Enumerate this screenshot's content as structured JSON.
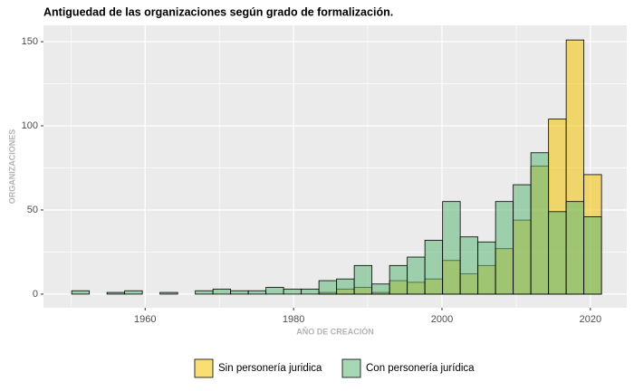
{
  "chart_data": {
    "type": "histogram",
    "title": "Antiguedad de las organizaciones según grado de formalización.",
    "x_label": "AÑO DE CREACIÓN",
    "y_label": "ORGANIZACIONES",
    "bins": [
      1950.1,
      1952.48,
      1954.86,
      1957.24,
      1959.62,
      1962.0,
      1964.38,
      1966.76,
      1969.14,
      1971.52,
      1973.9,
      1976.28,
      1978.66,
      1981.04,
      1983.42,
      1985.8,
      1988.18,
      1990.56,
      1992.94,
      1995.32,
      1997.7,
      2000.08,
      2002.46,
      2004.84,
      2007.22,
      2009.6,
      2011.98,
      2014.36,
      2016.74,
      2019.12,
      2021.5
    ],
    "series": [
      {
        "name": "Sin personería juridica",
        "color": "#f2c200",
        "values": [
          0,
          0,
          0,
          0,
          0,
          0,
          0,
          0,
          0,
          0,
          0,
          0,
          0,
          0,
          1,
          3,
          4,
          1,
          8,
          7,
          9,
          20,
          12,
          17,
          27,
          44,
          76,
          104,
          151,
          71
        ]
      },
      {
        "name": "Con personería jurídica",
        "color": "#5cb87a",
        "values": [
          2,
          0,
          1,
          2,
          0,
          1,
          0,
          2,
          3,
          2,
          2,
          4,
          3,
          3,
          8,
          9,
          17,
          6,
          17,
          22,
          32,
          55,
          34,
          31,
          55,
          65,
          84,
          49,
          55,
          46
        ]
      }
    ],
    "xlim": [
      1946.3,
      2024.9
    ],
    "xticks": [
      1960,
      1980,
      2000,
      2020
    ],
    "x_minor_grid": [
      1950,
      1970,
      1990,
      2010
    ],
    "ylim": [
      -8.1,
      159.7
    ],
    "yticks": [
      0,
      50,
      100,
      150
    ],
    "y_minor_grid": [
      25,
      75,
      125
    ],
    "grid": true,
    "legend": "bottom"
  }
}
